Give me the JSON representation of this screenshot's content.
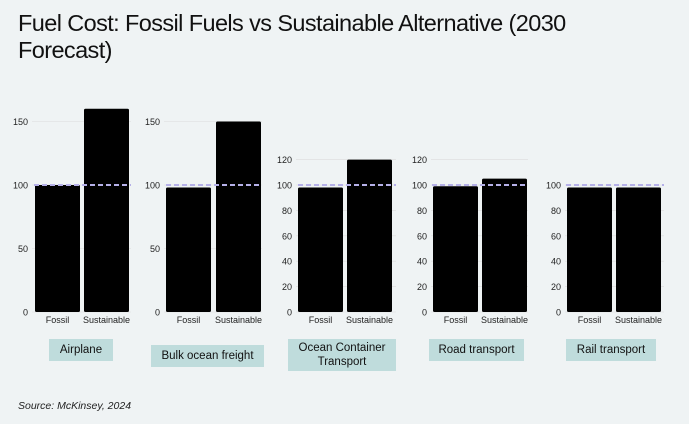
{
  "title": "Fuel Cost: Fossil Fuels vs Sustainable Alternative (2030 Forecast)",
  "source": "Source: McKinsey, 2024",
  "colors": {
    "bar": "#000000",
    "reference_line": "#b5b0e8",
    "label_bg": "#bfdcdc",
    "background": "#eff3f4",
    "grid": "#dcdcdc"
  },
  "chart_data": [
    {
      "type": "bar",
      "panel": "Airplane",
      "categories": [
        "Fossil",
        "Sustainable"
      ],
      "values": [
        100,
        160
      ],
      "yticks": [
        0,
        50,
        100,
        150
      ],
      "ylim": [
        0,
        160
      ],
      "reference_line": 100
    },
    {
      "type": "bar",
      "panel": "Bulk ocean freight",
      "categories": [
        "Fossil",
        "Sustainable"
      ],
      "values": [
        98,
        150
      ],
      "yticks": [
        0,
        50,
        100,
        150
      ],
      "ylim": [
        0,
        160
      ],
      "reference_line": 100
    },
    {
      "type": "bar",
      "panel": "Ocean Container Transport",
      "categories": [
        "Fossil",
        "Sustainable"
      ],
      "values": [
        98,
        120
      ],
      "yticks": [
        0,
        20,
        40,
        60,
        80,
        100,
        120
      ],
      "ylim": [
        0,
        120
      ],
      "reference_line": 100
    },
    {
      "type": "bar",
      "panel": "Road transport",
      "categories": [
        "Fossil",
        "Sustainable"
      ],
      "values": [
        99,
        105
      ],
      "yticks": [
        0,
        20,
        40,
        60,
        80,
        100,
        120
      ],
      "ylim": [
        0,
        120
      ],
      "reference_line": 100
    },
    {
      "type": "bar",
      "panel": "Rail transport",
      "categories": [
        "Fossil",
        "Sustainable"
      ],
      "values": [
        98,
        98
      ],
      "yticks": [
        0,
        20,
        40,
        60,
        80,
        100
      ],
      "ylim": [
        0,
        100
      ],
      "reference_line": 100
    }
  ]
}
